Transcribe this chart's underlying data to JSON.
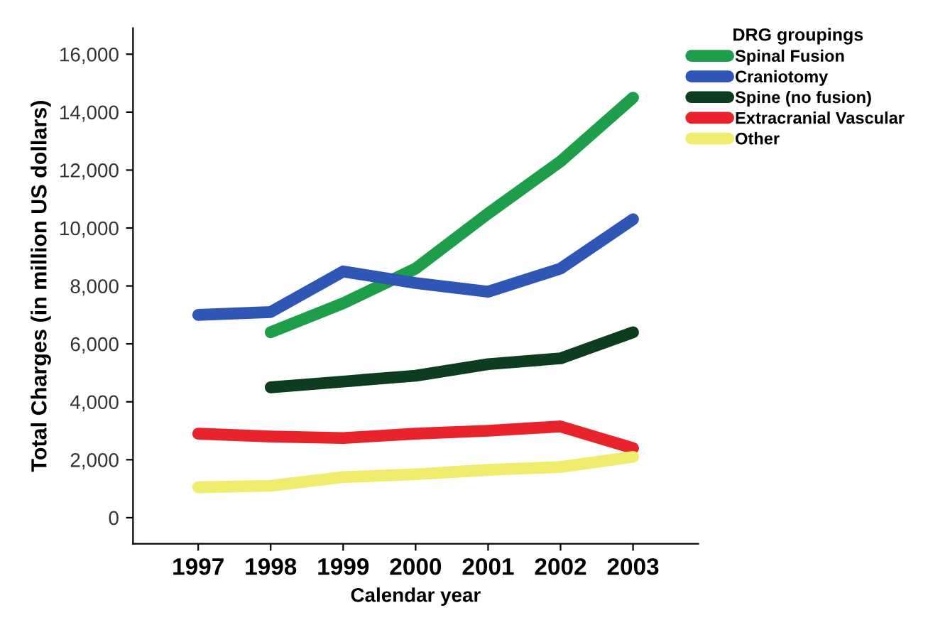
{
  "chart_data": {
    "type": "line",
    "xlabel": "Calendar year",
    "ylabel": "Total Charges (in million US dollars)",
    "legend_title": "DRG groupings",
    "categories": [
      "1997",
      "1998",
      "1999",
      "2000",
      "2001",
      "2002",
      "2003"
    ],
    "series": [
      {
        "name": "Spinal Fusion",
        "color": "#1e9e4a",
        "values": [
          null,
          6400,
          7400,
          8600,
          10500,
          12300,
          14500
        ]
      },
      {
        "name": "Craniotomy",
        "color": "#2f55b5",
        "values": [
          7000,
          7100,
          8500,
          8100,
          7800,
          8600,
          10300
        ]
      },
      {
        "name": "Spine (no fusion)",
        "color": "#0d3d1e",
        "values": [
          null,
          4500,
          4700,
          4900,
          5300,
          5500,
          6400
        ]
      },
      {
        "name": "Extracranial Vascular",
        "color": "#e8232b",
        "values": [
          2900,
          2800,
          2750,
          2900,
          3000,
          3150,
          2400
        ]
      },
      {
        "name": "Other",
        "color": "#f0ec6e",
        "values": [
          1050,
          1100,
          1400,
          1500,
          1650,
          1750,
          2100
        ]
      }
    ],
    "ylim": [
      -900,
      16900
    ],
    "yticks": [
      0,
      {
        "value": 2000,
        "label": "2,000"
      },
      {
        "value": 4000,
        "label": "4,000"
      },
      {
        "value": 6000,
        "label": "6,000"
      },
      {
        "value": 8000,
        "label": "8,000"
      },
      {
        "value": 10000,
        "label": "10,000"
      },
      {
        "value": 12000,
        "label": "12,000"
      },
      {
        "value": 14000,
        "label": "14,000"
      },
      {
        "value": 16000,
        "label": "16,000"
      }
    ],
    "grid": false,
    "legend": "top right",
    "marker": "none",
    "line_style": "solid"
  }
}
